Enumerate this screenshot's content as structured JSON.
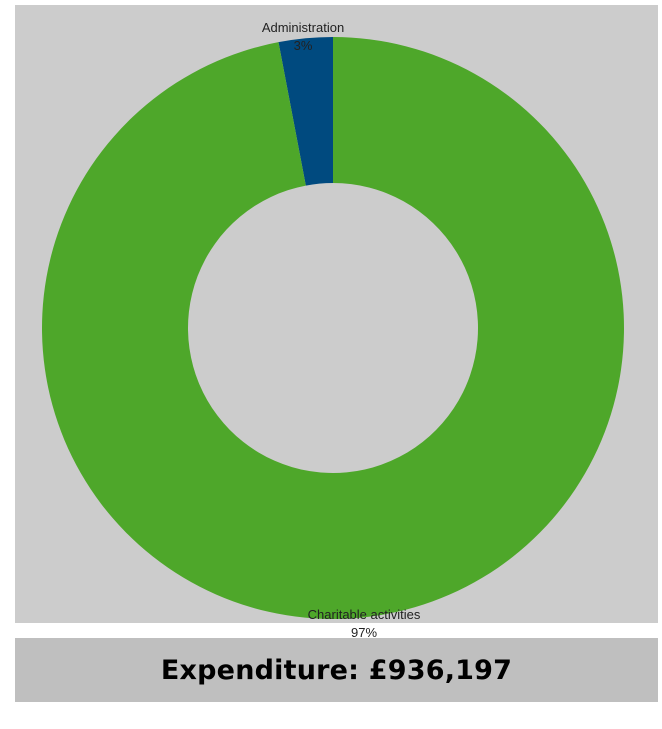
{
  "chart_data": {
    "type": "pie",
    "donut": true,
    "slices": [
      {
        "label": "Administration",
        "percent_label": "3%",
        "value": 3,
        "color": "#004a7f"
      },
      {
        "label": "Charitable activities",
        "percent_label": "97%",
        "value": 97,
        "color": "#4ea72a"
      }
    ],
    "legend": "none"
  },
  "colors": {
    "panel_background": "#cccccc",
    "caption_background": "#bfbfbf"
  },
  "caption": {
    "text": "Expenditure: £936,197"
  }
}
